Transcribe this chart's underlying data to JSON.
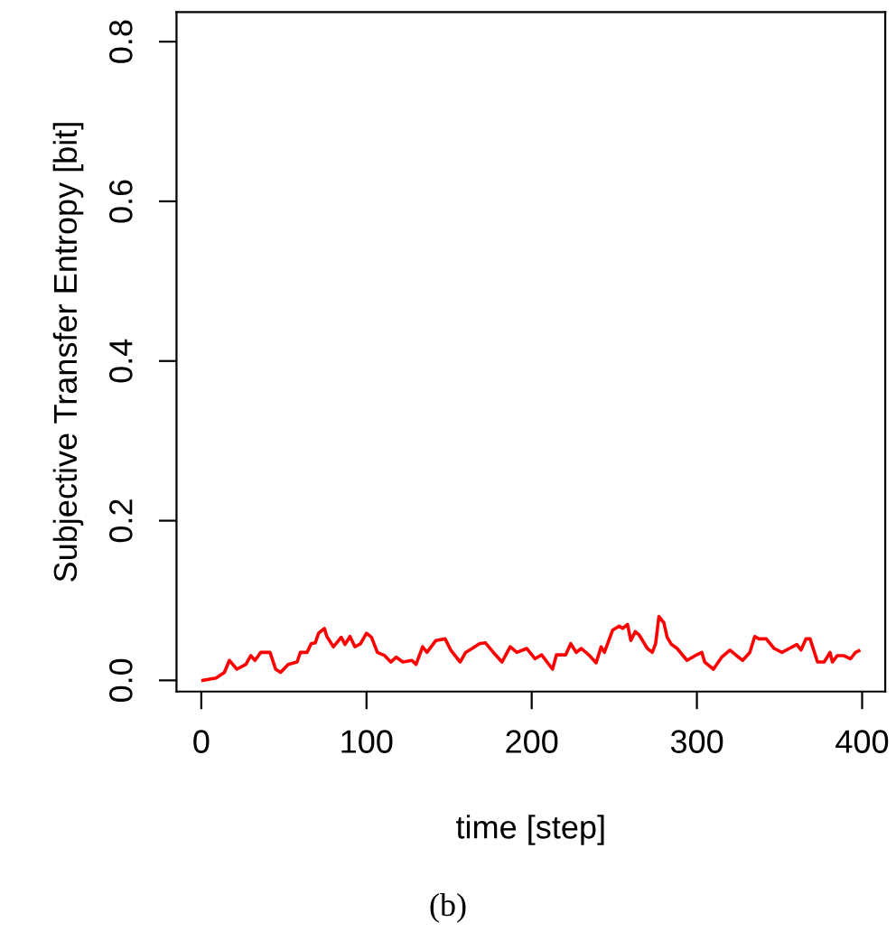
{
  "chart_data": {
    "type": "line",
    "xlabel": "time [step]",
    "ylabel": "Subjective Transfer Entropy [bit]",
    "annotations": [
      "(b)"
    ],
    "xlim": [
      -15,
      414
    ],
    "ylim": [
      -0.014,
      0.837
    ],
    "xticks": [
      0,
      100,
      200,
      300,
      400
    ],
    "yticks": [
      {
        "value": 0,
        "label": "0.0"
      },
      {
        "value": 0.2,
        "label": "0.2"
      },
      {
        "value": 0.4,
        "label": "0.4"
      },
      {
        "value": 0.6,
        "label": "0.6"
      },
      {
        "value": 0.8,
        "label": "0.8"
      }
    ],
    "marker": "none",
    "line_style": "solid",
    "series": [
      {
        "color": "#ff0000",
        "x": [
          1,
          9,
          14,
          17,
          21.5,
          27,
          30,
          32.5,
          36,
          41.6,
          45,
          48,
          52.6,
          58,
          60,
          64,
          66.5,
          69,
          71,
          74.5,
          76,
          80,
          84.7,
          87,
          90,
          93,
          96.4,
          100,
          103,
          106.6,
          111,
          114.7,
          118,
          122,
          127.5,
          130,
          134,
          136.6,
          142,
          147.6,
          151,
          156.7,
          160,
          164,
          168.4,
          172,
          176.8,
          182,
          187,
          191,
          197,
          202,
          206,
          212.6,
          215,
          220.6,
          223.6,
          227,
          230,
          235,
          239,
          242,
          244,
          249,
          253,
          255,
          258,
          260,
          262.7,
          265,
          270,
          273,
          275,
          277,
          280,
          282,
          284.6,
          288,
          294,
          299,
          303,
          304.7,
          310,
          315,
          320,
          324,
          327.7,
          332,
          335,
          337.5,
          342,
          346.7,
          351.5,
          356,
          360.5,
          363,
          366,
          368.5,
          373,
          377,
          380.6,
          382,
          385,
          388.7,
          393,
          396,
          398
        ],
        "values": [
          0.0,
          0.003,
          0.01,
          0.025,
          0.014,
          0.02,
          0.031,
          0.025,
          0.035,
          0.035,
          0.014,
          0.01,
          0.02,
          0.023,
          0.035,
          0.035,
          0.046,
          0.047,
          0.059,
          0.065,
          0.055,
          0.042,
          0.054,
          0.045,
          0.055,
          0.042,
          0.046,
          0.059,
          0.054,
          0.035,
          0.031,
          0.023,
          0.029,
          0.023,
          0.025,
          0.02,
          0.042,
          0.035,
          0.05,
          0.052,
          0.038,
          0.023,
          0.035,
          0.04,
          0.046,
          0.047,
          0.035,
          0.023,
          0.042,
          0.035,
          0.04,
          0.027,
          0.032,
          0.014,
          0.032,
          0.032,
          0.046,
          0.035,
          0.04,
          0.031,
          0.022,
          0.042,
          0.035,
          0.063,
          0.068,
          0.065,
          0.07,
          0.05,
          0.061,
          0.057,
          0.04,
          0.035,
          0.046,
          0.08,
          0.072,
          0.054,
          0.045,
          0.04,
          0.025,
          0.031,
          0.035,
          0.023,
          0.014,
          0.029,
          0.038,
          0.031,
          0.025,
          0.035,
          0.055,
          0.052,
          0.052,
          0.04,
          0.035,
          0.04,
          0.045,
          0.038,
          0.052,
          0.052,
          0.023,
          0.023,
          0.035,
          0.023,
          0.031,
          0.031,
          0.027,
          0.035,
          0.037
        ]
      }
    ]
  }
}
